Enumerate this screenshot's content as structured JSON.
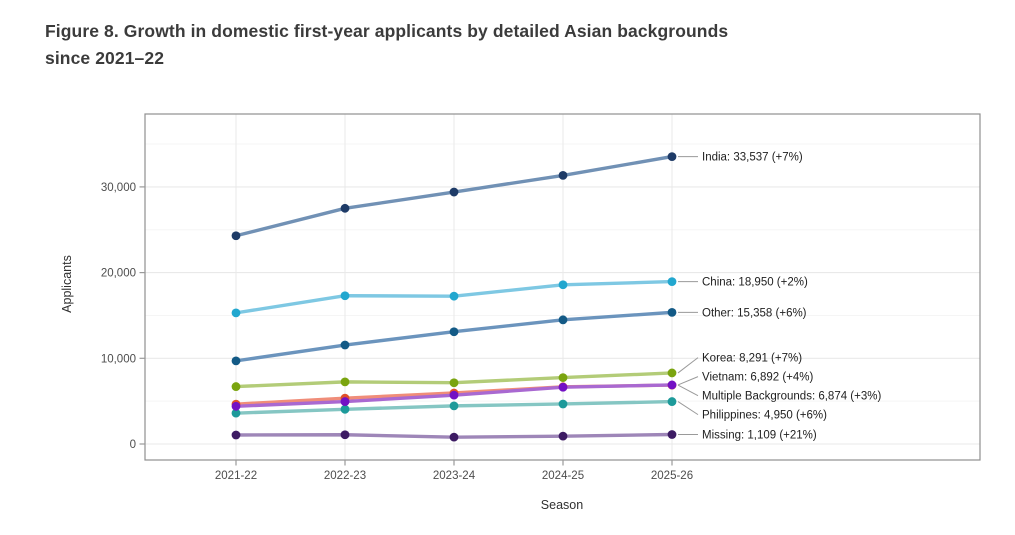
{
  "figure": {
    "title_line1": "Figure 8. Growth in domestic first-year applicants by detailed Asian backgrounds",
    "title_line2": "since 2021–22"
  },
  "chart_data": {
    "type": "line",
    "title": "Figure 8. Growth in domestic first-year applicants by detailed Asian backgrounds since 2021–22",
    "xlabel": "Season",
    "ylabel": "Applicants",
    "x": [
      "2021-22",
      "2022-23",
      "2023-24",
      "2024-25",
      "2025-26"
    ],
    "ylim": [
      0,
      38500
    ],
    "yticks": [
      0,
      10000,
      20000,
      30000
    ],
    "ytick_labels": [
      "0",
      "10,000",
      "20,000",
      "30,000"
    ],
    "grid": "light gray horizontal major+minor, vertical at each season",
    "legend_position": "direct labels at right end of lines",
    "series": [
      {
        "name": "India",
        "slug": "india",
        "values": [
          24300,
          27500,
          29400,
          31343,
          33537
        ],
        "end_label": "India: 33,537 (+7%)",
        "line_color": "#7191b5",
        "point_color": "#1e3b67"
      },
      {
        "name": "China",
        "slug": "china",
        "values": [
          15300,
          17300,
          17250,
          18578,
          18950
        ],
        "end_label": "China: 18,950 (+2%)",
        "line_color": "#7ec8e3",
        "point_color": "#22a7cf"
      },
      {
        "name": "Other",
        "slug": "other",
        "values": [
          9700,
          11550,
          13100,
          14489,
          15358
        ],
        "end_label": "Other: 15,358 (+6%)",
        "line_color": "#6b94bd",
        "point_color": "#135a86"
      },
      {
        "name": "Korea",
        "slug": "korea",
        "values": [
          6700,
          7250,
          7150,
          7749,
          8291
        ],
        "end_label": "Korea: 8,291 (+7%)",
        "line_color": "#b3cc78",
        "point_color": "#7aa40f"
      },
      {
        "name": "Vietnam",
        "slug": "vietnam",
        "values": [
          4400,
          4950,
          5700,
          6627,
          6892
        ],
        "end_label": "Vietnam: 6,892 (+4%)",
        "line_color": "#a969d1",
        "point_color": "#7311c4"
      },
      {
        "name": "Multiple Backgrounds",
        "slug": "multiple-backgrounds",
        "values": [
          4650,
          5350,
          5950,
          6674,
          6874
        ],
        "end_label": "Multiple Backgrounds: 6,874 (+3%)",
        "line_color": "#f08d79",
        "point_color": "#e0502a"
      },
      {
        "name": "Philippines",
        "slug": "philippines",
        "values": [
          3600,
          4050,
          4450,
          4670,
          4950
        ],
        "end_label": "Philippines: 4,950 (+6%)",
        "line_color": "#85c6c3",
        "point_color": "#1d9a9a"
      },
      {
        "name": "Missing",
        "slug": "missing",
        "values": [
          1050,
          1080,
          800,
          917,
          1109
        ],
        "end_label": "Missing: 1,109 (+21%)",
        "line_color": "#9e86b8",
        "point_color": "#3d1b63"
      }
    ],
    "colors": {
      "title_text": "#3b3b3b",
      "axis_title_text": "#303030",
      "tick_label_text": "#4d4d4d",
      "series_label_text": "#212121",
      "panel_border": "#8f8f8f",
      "grid_major": "#e9e9e9",
      "grid_minor": "#f5f5f5",
      "leader_line": "#9a9a9a",
      "background": "#ffffff"
    }
  }
}
